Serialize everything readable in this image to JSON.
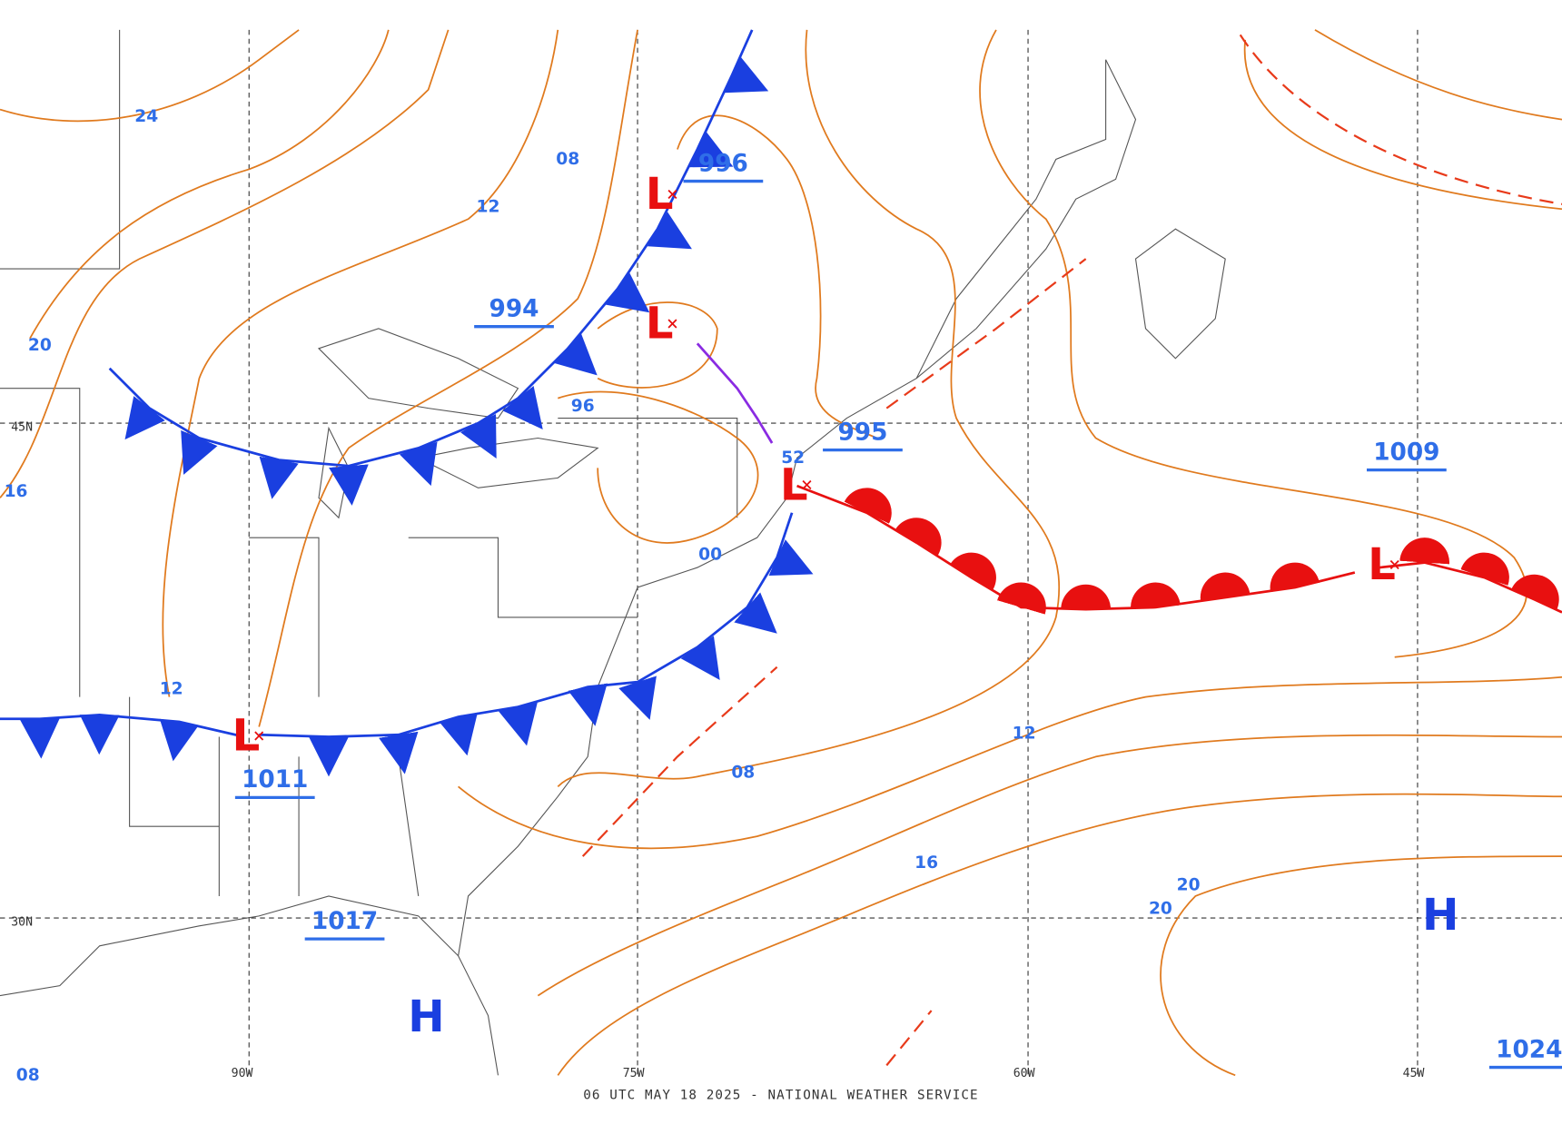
{
  "map": {
    "footer": "06 UTC MAY 18 2025 - NATIONAL WEATHER SERVICE",
    "grid_labels": [
      "45N",
      "30N",
      "90W",
      "75W",
      "60W",
      "45W"
    ],
    "pressure_centers": [
      {
        "symbol": "L",
        "pressure": "996"
      },
      {
        "symbol": "L",
        "pressure": "994"
      },
      {
        "symbol": "L",
        "pressure": "995"
      },
      {
        "symbol": "L",
        "pressure": "1011"
      },
      {
        "symbol": "L",
        "pressure": "1009"
      },
      {
        "symbol": "H",
        "pressure": "1017"
      },
      {
        "symbol": "H",
        "pressure": "1024"
      }
    ],
    "isobar_labels": [
      "24",
      "20",
      "16",
      "12",
      "08",
      "12",
      "96",
      "00",
      "52",
      "08",
      "12",
      "16",
      "20",
      "20",
      "08"
    ]
  }
}
